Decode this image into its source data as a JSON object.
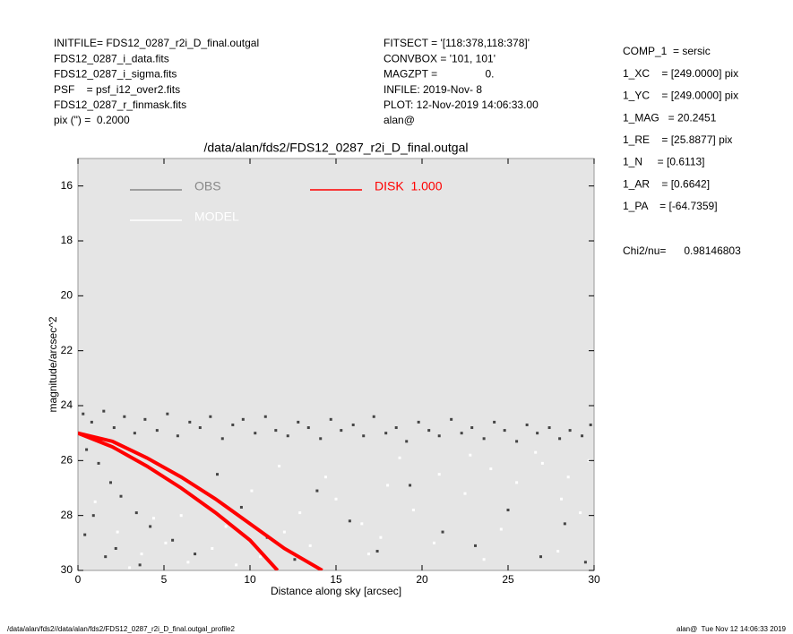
{
  "header_left": [
    "INITFILE= FDS12_0287_r2i_D_final.outgal",
    "FDS12_0287_i_data.fits",
    "FDS12_0287_i_sigma.fits",
    "PSF    = psf_i12_over2.fits",
    "FDS12_0287_r_finmask.fits",
    "pix (\") =  0.2000"
  ],
  "header_mid": [
    "FITSECT = '[118:378,118:378]'",
    "CONVBOX = '101, 101'",
    "MAGZPT =                0.",
    "INFILE: 2019-Nov- 8",
    "PLOT: 12-Nov-2019 14:06:33.00",
    "alan@"
  ],
  "params": [
    "COMP_1  = sersic",
    "1_XC    = [249.0000] pix",
    "1_YC    = [249.0000] pix",
    "1_MAG   = 20.2451",
    "1_RE    = [25.8877] pix",
    "1_N     = [0.6113]",
    "1_AR    = [0.6642]",
    "1_PA    = [-64.7359]"
  ],
  "chi2": "Chi2/nu=      0.98146803",
  "footer_left": "/data/alan/fds2//data/alan/fds2/FDS12_0287_r2i_D_final.outgal_profile2",
  "footer_right": "alan@  Tue Nov 12 14:06:33 2019",
  "chart_data": {
    "type": "scatter",
    "title": "/data/alan/fds2/FDS12_0287_r2i_D_final.outgal",
    "x_label": "Distance along sky [arcsec]",
    "y_label": "magnitude/arcsec^2",
    "xlim": [
      0,
      30
    ],
    "ylim": [
      30,
      15
    ],
    "xticks": [
      0,
      5,
      10,
      15,
      20,
      25,
      30
    ],
    "yticks": [
      16,
      18,
      20,
      22,
      24,
      26,
      28,
      30
    ],
    "y_inverted": true,
    "background": "#e5e5e5",
    "series": [
      {
        "name": "OBS",
        "color": "#444444",
        "kind": "points",
        "x": [
          0.3,
          0.8,
          1.5,
          2.1,
          2.7,
          3.3,
          3.9,
          4.6,
          5.2,
          5.8,
          6.5,
          7.1,
          7.7,
          8.4,
          9.0,
          9.6,
          10.3,
          10.9,
          11.5,
          12.2,
          12.8,
          13.4,
          14.1,
          14.7,
          15.3,
          16.0,
          16.6,
          17.2,
          17.9,
          18.5,
          19.1,
          19.8,
          20.4,
          21.0,
          21.7,
          22.3,
          22.9,
          23.6,
          24.2,
          24.8,
          25.5,
          26.1,
          26.7,
          27.4,
          28.0,
          28.6,
          29.3,
          29.8,
          0.5,
          1.2,
          1.9,
          2.5,
          3.4,
          4.2,
          5.5,
          6.8,
          8.1,
          9.5,
          11.0,
          12.6,
          13.9,
          15.8,
          17.4,
          19.3,
          21.2,
          23.1,
          25.0,
          26.9,
          28.3,
          29.5,
          0.9,
          2.2,
          3.6,
          1.6,
          0.4
        ],
        "values": [
          24.3,
          24.6,
          24.2,
          24.8,
          24.4,
          25.0,
          24.5,
          24.9,
          24.3,
          25.1,
          24.6,
          24.8,
          24.4,
          25.2,
          24.7,
          24.5,
          25.0,
          24.4,
          24.9,
          25.1,
          24.6,
          24.8,
          25.2,
          24.5,
          24.9,
          24.7,
          25.1,
          24.4,
          25.0,
          24.8,
          25.3,
          24.6,
          24.9,
          25.1,
          24.5,
          25.0,
          24.8,
          25.2,
          24.6,
          24.9,
          25.3,
          24.7,
          25.0,
          24.8,
          25.2,
          24.9,
          25.1,
          24.7,
          25.6,
          26.1,
          26.8,
          27.3,
          27.9,
          28.4,
          28.9,
          29.4,
          26.5,
          27.7,
          28.8,
          29.6,
          27.1,
          28.2,
          29.3,
          26.9,
          28.6,
          29.1,
          27.8,
          29.5,
          28.3,
          29.7,
          28.0,
          29.2,
          29.8,
          29.5,
          28.7
        ]
      },
      {
        "name": "MODEL",
        "color": "#ffffff",
        "kind": "points",
        "x": [
          1.0,
          2.3,
          3.7,
          5.1,
          6.4,
          7.8,
          9.2,
          10.6,
          12.0,
          13.5,
          15.0,
          16.5,
          18.0,
          19.5,
          21.0,
          22.5,
          24.0,
          25.5,
          27.0,
          28.5,
          29.7,
          4.4,
          8.6,
          12.9,
          16.9,
          20.7,
          24.6,
          28.1,
          6.0,
          10.1,
          14.4,
          18.7,
          22.8,
          26.6,
          29.2,
          3.0,
          11.7,
          17.6,
          23.6,
          27.9
        ],
        "values": [
          27.5,
          28.6,
          29.4,
          29.0,
          29.7,
          29.2,
          29.8,
          29.5,
          28.6,
          29.1,
          27.4,
          28.3,
          26.9,
          27.8,
          26.5,
          27.2,
          26.3,
          26.8,
          26.1,
          26.6,
          26.0,
          28.1,
          28.4,
          27.9,
          29.4,
          29.0,
          28.5,
          27.4,
          28.0,
          27.1,
          26.6,
          25.9,
          25.8,
          25.7,
          27.9,
          29.9,
          26.2,
          28.8,
          29.6,
          29.3
        ]
      },
      {
        "name": "DISK  1.000",
        "color": "#ff0000",
        "kind": "line",
        "x": [
          0,
          2,
          4,
          6,
          8,
          10,
          12,
          14.2,
          null,
          0,
          2,
          4,
          6,
          8,
          10,
          11.6
        ],
        "values": [
          25,
          25.3,
          25.9,
          26.6,
          27.4,
          28.3,
          29.2,
          30,
          null,
          25,
          25.5,
          26.2,
          27.0,
          27.9,
          28.9,
          30
        ]
      }
    ]
  }
}
